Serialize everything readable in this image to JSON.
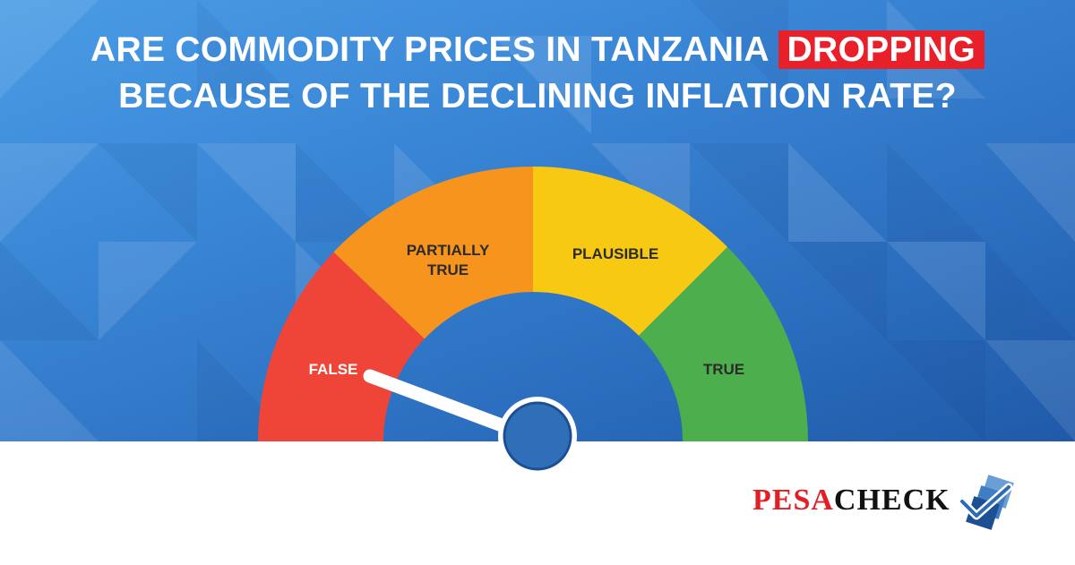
{
  "headline": {
    "line1_before": "ARE COMMODITY PRICES IN TANZANIA ",
    "line1_highlight": "DROPPING",
    "line2": "BECAUSE OF THE DECLINING INFLATION RATE?"
  },
  "gauge": {
    "segments": [
      {
        "label": "FALSE",
        "color": "#ef4538"
      },
      {
        "label_line1": "PARTIALLY",
        "label_line2": "TRUE",
        "color": "#f7941e"
      },
      {
        "label": "PLAUSIBLE",
        "color": "#f8c913"
      },
      {
        "label": "TRUE",
        "color": "#4cae4c"
      }
    ],
    "selected": "FALSE"
  },
  "logo": {
    "part1": "PESA",
    "part2": "CHECK",
    "icon": "checkmark-icon"
  },
  "colors": {
    "highlight": "#e8202a",
    "background_top": "#4a9ce6",
    "background_bottom": "#1f5aa8",
    "needle": "#ffffff",
    "hub": "#2f6fb8"
  }
}
